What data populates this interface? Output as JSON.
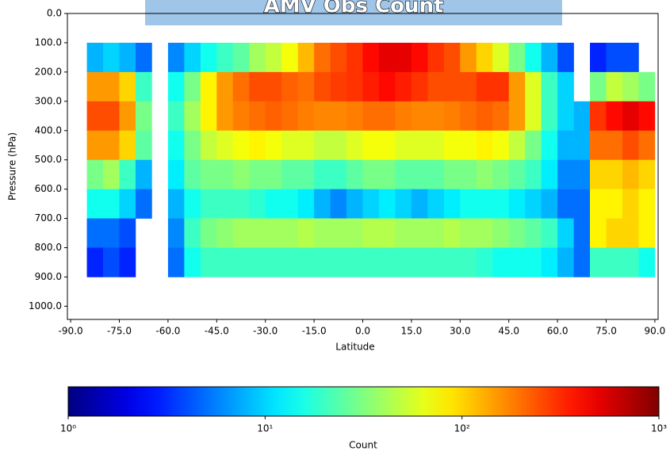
{
  "chart_data": {
    "type": "heatmap",
    "title": "AMV Obs Count",
    "x_label": "Latitude",
    "y_label": "Pressure (hPa)",
    "colorbar_label": "Count",
    "xlim": [
      -91,
      91
    ],
    "ylim": [
      1045,
      0
    ],
    "xticks": [
      {
        "value": -90,
        "label": "-90.0"
      },
      {
        "value": -75,
        "label": "-75.0"
      },
      {
        "value": -60,
        "label": "-60.0"
      },
      {
        "value": -45,
        "label": "-45.0"
      },
      {
        "value": -30,
        "label": "-30.0"
      },
      {
        "value": -15,
        "label": "-15.0"
      },
      {
        "value": 0,
        "label": "0.0"
      },
      {
        "value": 15,
        "label": "15.0"
      },
      {
        "value": 30,
        "label": "30.0"
      },
      {
        "value": 45,
        "label": "45.0"
      },
      {
        "value": 60,
        "label": "60.0"
      },
      {
        "value": 75,
        "label": "75.0"
      },
      {
        "value": 90,
        "label": "90.0"
      }
    ],
    "yticks": [
      {
        "value": 0,
        "label": "0.0"
      },
      {
        "value": 100,
        "label": "100.0"
      },
      {
        "value": 200,
        "label": "200.0"
      },
      {
        "value": 300,
        "label": "300.0"
      },
      {
        "value": 400,
        "label": "400.0"
      },
      {
        "value": 500,
        "label": "500.0"
      },
      {
        "value": 600,
        "label": "600.0"
      },
      {
        "value": 700,
        "label": "700.0"
      },
      {
        "value": 800,
        "label": "800.0"
      },
      {
        "value": 900,
        "label": "900.0"
      },
      {
        "value": 1000,
        "label": "1000.0"
      }
    ],
    "clim": [
      1,
      1000
    ],
    "color_scale": "log",
    "colormap": "jet",
    "cticks": [
      {
        "value": 1,
        "label": "10⁰"
      },
      {
        "value": 10,
        "label": "10¹"
      },
      {
        "value": 100,
        "label": "10²"
      },
      {
        "value": 1000,
        "label": "10³"
      }
    ],
    "xbins": [
      -85,
      -80,
      -75,
      -70,
      -65,
      -60,
      -55,
      -50,
      -45,
      -40,
      -35,
      -30,
      -25,
      -20,
      -15,
      -10,
      -5,
      0,
      5,
      10,
      15,
      20,
      25,
      30,
      35,
      40,
      45,
      50,
      55,
      60,
      65,
      70,
      75,
      80,
      85,
      90
    ],
    "ybins": [
      100,
      200,
      300,
      400,
      500,
      600,
      700,
      800,
      900
    ],
    "values": [
      [
        8,
        10,
        8,
        5,
        null,
        6,
        10,
        15,
        20,
        25,
        40,
        50,
        70,
        120,
        200,
        250,
        300,
        400,
        500,
        500,
        400,
        300,
        250,
        150,
        100,
        60,
        30,
        15,
        8,
        4,
        null,
        3,
        4,
        4,
        null
      ],
      [
        150,
        150,
        100,
        20,
        null,
        15,
        30,
        80,
        150,
        200,
        250,
        250,
        220,
        200,
        250,
        280,
        300,
        350,
        400,
        350,
        300,
        250,
        250,
        250,
        300,
        300,
        150,
        60,
        20,
        10,
        null,
        30,
        50,
        40,
        30
      ],
      [
        250,
        250,
        150,
        30,
        null,
        20,
        40,
        80,
        150,
        180,
        200,
        220,
        200,
        180,
        170,
        170,
        180,
        200,
        200,
        180,
        170,
        170,
        180,
        200,
        220,
        200,
        150,
        60,
        20,
        10,
        8,
        300,
        400,
        500,
        400
      ],
      [
        150,
        150,
        100,
        25,
        null,
        15,
        30,
        50,
        60,
        70,
        80,
        70,
        60,
        60,
        50,
        50,
        60,
        70,
        70,
        60,
        60,
        60,
        70,
        70,
        80,
        70,
        50,
        30,
        15,
        8,
        8,
        200,
        200,
        250,
        200
      ],
      [
        30,
        40,
        20,
        8,
        null,
        12,
        25,
        30,
        30,
        35,
        30,
        30,
        25,
        25,
        20,
        20,
        25,
        30,
        30,
        25,
        25,
        25,
        30,
        30,
        35,
        30,
        25,
        20,
        12,
        6,
        6,
        100,
        100,
        120,
        100
      ],
      [
        15,
        15,
        10,
        5,
        null,
        8,
        15,
        20,
        20,
        20,
        18,
        15,
        15,
        12,
        8,
        6,
        8,
        10,
        12,
        10,
        8,
        10,
        12,
        15,
        15,
        15,
        12,
        10,
        8,
        5,
        5,
        80,
        80,
        100,
        80
      ],
      [
        5,
        5,
        4,
        null,
        null,
        6,
        20,
        30,
        35,
        40,
        40,
        40,
        40,
        45,
        40,
        40,
        40,
        45,
        45,
        40,
        40,
        40,
        45,
        40,
        40,
        35,
        30,
        25,
        20,
        10,
        5,
        80,
        100,
        100,
        80
      ],
      [
        3,
        4,
        3,
        null,
        null,
        5,
        15,
        20,
        20,
        20,
        20,
        20,
        20,
        20,
        20,
        20,
        20,
        20,
        20,
        20,
        20,
        20,
        20,
        20,
        18,
        15,
        15,
        15,
        12,
        8,
        5,
        20,
        20,
        20,
        15
      ]
    ]
  }
}
